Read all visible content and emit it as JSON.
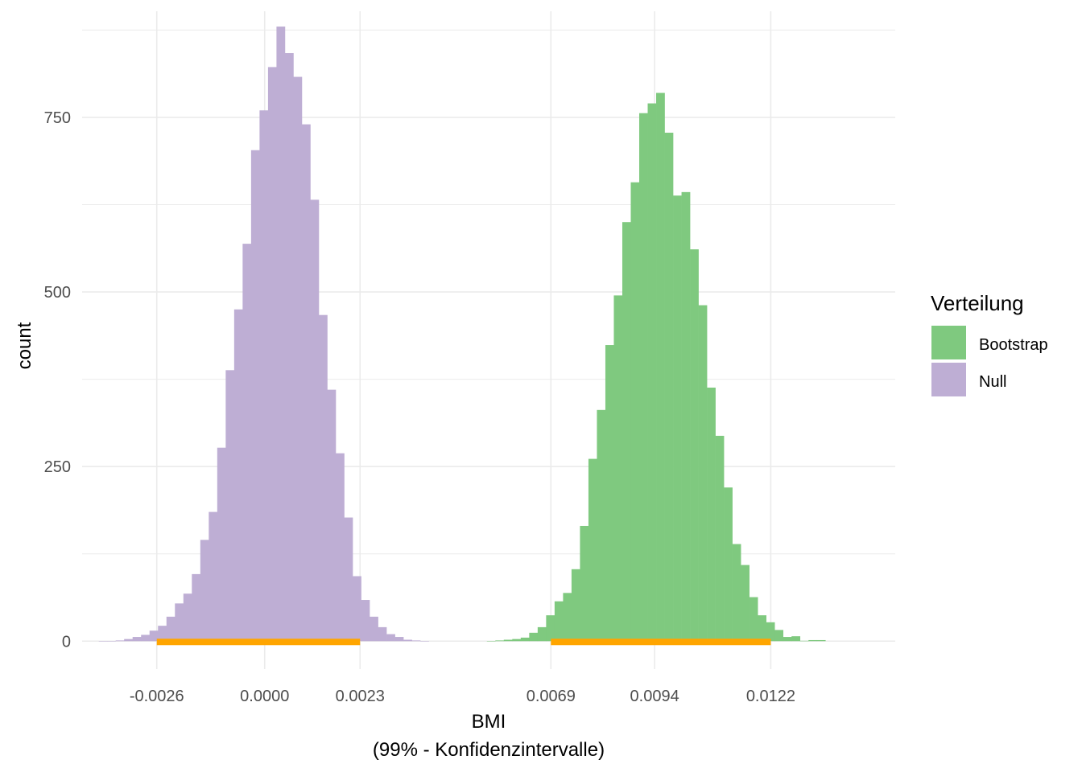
{
  "chart_data": {
    "type": "histogram",
    "xlabel": "BMI",
    "xlabel_sub": "(99% - Konfidenzintervalle)",
    "ylabel": "count",
    "xlim": [
      -0.0044,
      0.0152
    ],
    "ylim": [
      -40,
      895
    ],
    "x_ticks": [
      -0.0026,
      0.0,
      0.0023,
      0.0069,
      0.0094,
      0.0122
    ],
    "x_tick_labels": [
      "-0.0026",
      "0.0000",
      "0.0023",
      "0.0069",
      "0.0094",
      "0.0122"
    ],
    "y_ticks": [
      0,
      250,
      500,
      750
    ],
    "y_tick_labels": [
      "0",
      "250",
      "500",
      "750"
    ],
    "grid": true,
    "legend": {
      "title": "Verteilung",
      "position": "right",
      "entries": [
        {
          "label": "Bootstrap",
          "color": "#7fc97f"
        },
        {
          "label": "Null",
          "color": "#beaed4"
        }
      ]
    },
    "series": [
      {
        "name": "Null",
        "color": "#beaed4",
        "bin_width": 0.000204,
        "bins": [
          {
            "x": -0.003897,
            "count": 0.1
          },
          {
            "x": -0.003693,
            "count": 0.3
          },
          {
            "x": -0.003489,
            "count": 1
          },
          {
            "x": -0.003285,
            "count": 3
          },
          {
            "x": -0.003081,
            "count": 6
          },
          {
            "x": -0.002877,
            "count": 9
          },
          {
            "x": -0.002673,
            "count": 15
          },
          {
            "x": -0.002469,
            "count": 22
          },
          {
            "x": -0.002265,
            "count": 35
          },
          {
            "x": -0.002061,
            "count": 54
          },
          {
            "x": -0.001857,
            "count": 68
          },
          {
            "x": -0.001653,
            "count": 96
          },
          {
            "x": -0.001449,
            "count": 145
          },
          {
            "x": -0.001245,
            "count": 185
          },
          {
            "x": -0.001041,
            "count": 277
          },
          {
            "x": -0.000837,
            "count": 388
          },
          {
            "x": -0.000633,
            "count": 475
          },
          {
            "x": -0.000429,
            "count": 569
          },
          {
            "x": -0.000225,
            "count": 703
          },
          {
            "x": -2.1e-05,
            "count": 760
          },
          {
            "x": 0.000183,
            "count": 822
          },
          {
            "x": 0.000387,
            "count": 880
          },
          {
            "x": 0.000591,
            "count": 842
          },
          {
            "x": 0.000795,
            "count": 808
          },
          {
            "x": 0.000999,
            "count": 740
          },
          {
            "x": 0.001203,
            "count": 632
          },
          {
            "x": 0.001407,
            "count": 467
          },
          {
            "x": 0.001611,
            "count": 360
          },
          {
            "x": 0.001815,
            "count": 269
          },
          {
            "x": 0.002019,
            "count": 177
          },
          {
            "x": 0.002223,
            "count": 93
          },
          {
            "x": 0.002427,
            "count": 59
          },
          {
            "x": 0.002631,
            "count": 35
          },
          {
            "x": 0.002835,
            "count": 20
          },
          {
            "x": 0.003039,
            "count": 10
          },
          {
            "x": 0.003243,
            "count": 6
          },
          {
            "x": 0.003447,
            "count": 2
          },
          {
            "x": 0.003651,
            "count": 1
          },
          {
            "x": 0.003855,
            "count": 0.2
          }
        ]
      },
      {
        "name": "Bootstrap",
        "color": "#7fc97f",
        "bin_width": 0.000204,
        "bins": [
          {
            "x": 0.005459,
            "count": 0.3
          },
          {
            "x": 0.005663,
            "count": 1
          },
          {
            "x": 0.005867,
            "count": 2
          },
          {
            "x": 0.006071,
            "count": 3
          },
          {
            "x": 0.006275,
            "count": 5
          },
          {
            "x": 0.006479,
            "count": 12
          },
          {
            "x": 0.006683,
            "count": 20
          },
          {
            "x": 0.006887,
            "count": 37
          },
          {
            "x": 0.007091,
            "count": 57
          },
          {
            "x": 0.007295,
            "count": 69
          },
          {
            "x": 0.007499,
            "count": 103
          },
          {
            "x": 0.007703,
            "count": 165
          },
          {
            "x": 0.007907,
            "count": 261
          },
          {
            "x": 0.008111,
            "count": 331
          },
          {
            "x": 0.008315,
            "count": 424
          },
          {
            "x": 0.008519,
            "count": 495
          },
          {
            "x": 0.008723,
            "count": 600
          },
          {
            "x": 0.008927,
            "count": 657
          },
          {
            "x": 0.009131,
            "count": 756
          },
          {
            "x": 0.009335,
            "count": 770
          },
          {
            "x": 0.009539,
            "count": 785
          },
          {
            "x": 0.009743,
            "count": 728
          },
          {
            "x": 0.009947,
            "count": 638
          },
          {
            "x": 0.010151,
            "count": 643
          },
          {
            "x": 0.010355,
            "count": 561
          },
          {
            "x": 0.010559,
            "count": 481
          },
          {
            "x": 0.010763,
            "count": 363
          },
          {
            "x": 0.010967,
            "count": 294
          },
          {
            "x": 0.011171,
            "count": 220
          },
          {
            "x": 0.011375,
            "count": 139
          },
          {
            "x": 0.011579,
            "count": 109
          },
          {
            "x": 0.011783,
            "count": 63
          },
          {
            "x": 0.011987,
            "count": 37
          },
          {
            "x": 0.012191,
            "count": 27
          },
          {
            "x": 0.012395,
            "count": 16
          },
          {
            "x": 0.012599,
            "count": 6
          },
          {
            "x": 0.012803,
            "count": 7
          },
          {
            "x": 0.013007,
            "count": 0.5
          },
          {
            "x": 0.013211,
            "count": 1.5
          },
          {
            "x": 0.013415,
            "count": 1.5
          }
        ]
      }
    ],
    "confidence_intervals": [
      {
        "series": "Null",
        "lower": -0.0026,
        "upper": 0.0023,
        "color": "#ffa500"
      },
      {
        "series": "Bootstrap",
        "lower": 0.0069,
        "upper": 0.0122,
        "color": "#ffa500"
      }
    ]
  }
}
